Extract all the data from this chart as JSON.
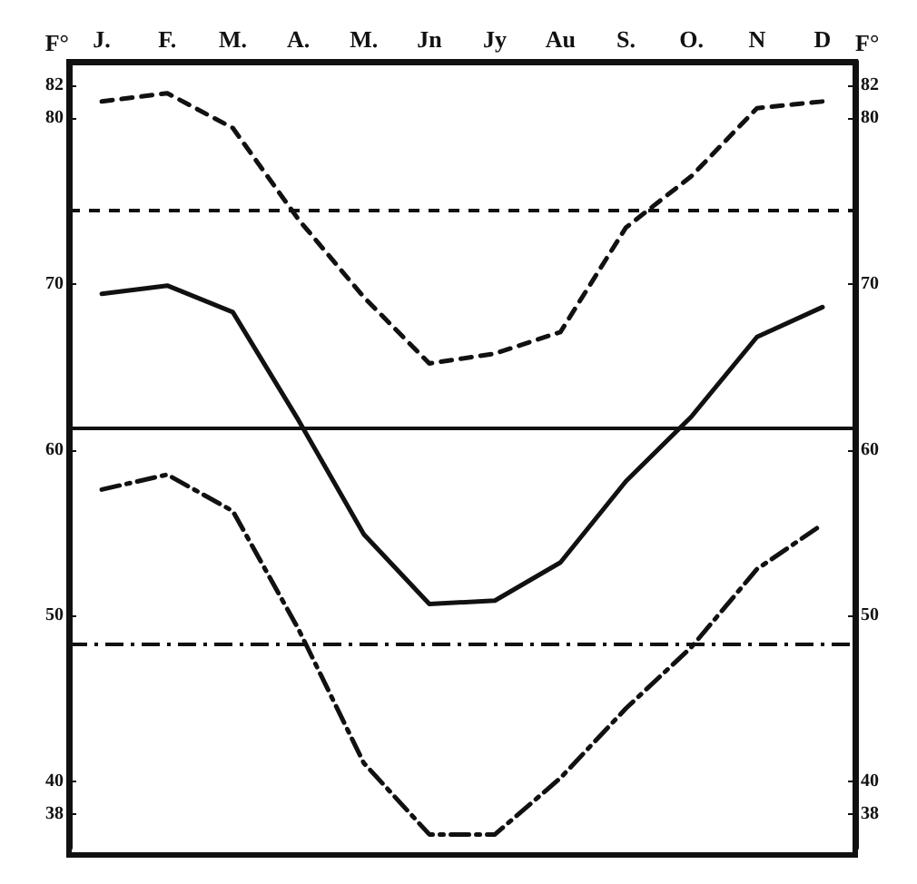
{
  "chart_data": {
    "type": "line",
    "ylabel": "F°",
    "y2label": "F°",
    "categories": [
      "J.",
      "F.",
      "M.",
      "A.",
      "M.",
      "Jn",
      "Jy",
      "Au",
      "S.",
      "O.",
      "N",
      "D"
    ],
    "series": [
      {
        "color": "#111111",
        "line_style": "dashed",
        "values": [
          81,
          81.5,
          79.4,
          73.9,
          69.2,
          65.2,
          65.8,
          67.1,
          73.4,
          76.5,
          80.6,
          81
        ]
      },
      {
        "color": "#111111",
        "line_style": "solid",
        "values": [
          69.4,
          69.9,
          68.3,
          61.8,
          54.9,
          50.7,
          50.9,
          53.2,
          58.1,
          62,
          66.8,
          68.6
        ]
      },
      {
        "color": "#111111",
        "line_style": "dashdot",
        "values": [
          57.6,
          58.5,
          56.3,
          49.2,
          41.1,
          36.8,
          36.8,
          40.2,
          44.4,
          48.1,
          52.8,
          55.5
        ]
      }
    ],
    "ref_lines": [
      {
        "axis": "y",
        "value": 74.4,
        "line_style": "dashed",
        "color": "#111111"
      },
      {
        "axis": "y",
        "value": 61.3,
        "line_style": "solid",
        "color": "#111111"
      },
      {
        "axis": "y",
        "value": 48.3,
        "line_style": "dashdot",
        "color": "#111111"
      }
    ],
    "ylim": [
      36,
      83.4
    ],
    "yticks": [
      38,
      40,
      50,
      60,
      70,
      80,
      82
    ],
    "y2lim": [
      36,
      83.4
    ],
    "y2ticks": [
      38,
      40,
      50,
      60,
      70,
      80,
      82
    ],
    "grid": false,
    "marker": "none"
  }
}
